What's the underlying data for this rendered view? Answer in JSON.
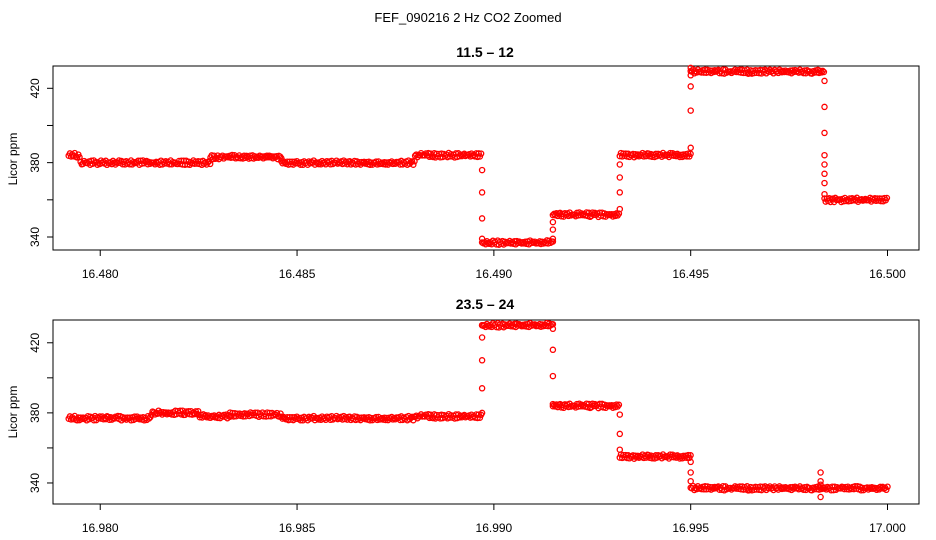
{
  "page_title": "FEF_090216  2 Hz CO2 Zoomed",
  "chart_data": [
    {
      "type": "scatter",
      "title": "11.5 – 12",
      "xlabel": "",
      "ylabel": "Licor ppm",
      "xlim": [
        16.4788,
        16.5008
      ],
      "ylim": [
        333,
        432
      ],
      "x_ticks": [
        "16.480",
        "16.485",
        "16.490",
        "16.495",
        "16.500"
      ],
      "y_ticks": [
        "340",
        "380",
        "420"
      ],
      "grid": false,
      "marker": "open-circle",
      "color": "#ff0000",
      "segments": [
        {
          "x0": 16.4792,
          "x1": 16.4795,
          "y": 384
        },
        {
          "x0": 16.4795,
          "x1": 16.4828,
          "y": 380
        },
        {
          "x0": 16.4828,
          "x1": 16.4846,
          "y": 383
        },
        {
          "x0": 16.4846,
          "x1": 16.488,
          "y": 380
        },
        {
          "x0": 16.488,
          "x1": 16.4897,
          "y": 384
        },
        {
          "x0": 16.4897,
          "x1": 16.4915,
          "y": 337
        },
        {
          "x0": 16.4915,
          "x1": 16.4932,
          "y": 352
        },
        {
          "x0": 16.4932,
          "x1": 16.495,
          "y": 384
        },
        {
          "x0": 16.495,
          "x1": 16.4984,
          "y": 429
        },
        {
          "x0": 16.4984,
          "x1": 16.5,
          "y": 360
        }
      ],
      "transitions": [
        {
          "x": 16.4897,
          "y": [
            376,
            364,
            350,
            339
          ]
        },
        {
          "x": 16.4915,
          "y": [
            348,
            344,
            339
          ]
        },
        {
          "x": 16.4932,
          "y": [
            379,
            372,
            364,
            355
          ]
        },
        {
          "x": 16.495,
          "y": [
            388,
            408,
            421,
            427,
            431
          ]
        },
        {
          "x": 16.4984,
          "y": [
            424,
            410,
            396,
            384,
            379,
            374,
            369,
            363
          ]
        }
      ]
    },
    {
      "type": "scatter",
      "title": "23.5 – 24",
      "xlabel": "",
      "ylabel": "Licor ppm",
      "xlim": [
        16.9788,
        17.0008
      ],
      "ylim": [
        328,
        433
      ],
      "x_ticks": [
        "16.980",
        "16.985",
        "16.990",
        "16.995",
        "17.000"
      ],
      "y_ticks": [
        "340",
        "380",
        "420"
      ],
      "grid": false,
      "marker": "open-circle",
      "color": "#ff0000",
      "segments": [
        {
          "x0": 16.9792,
          "x1": 16.9813,
          "y": 377
        },
        {
          "x0": 16.9813,
          "x1": 16.9825,
          "y": 380
        },
        {
          "x0": 16.9825,
          "x1": 16.9833,
          "y": 378
        },
        {
          "x0": 16.9833,
          "x1": 16.9846,
          "y": 379
        },
        {
          "x0": 16.9846,
          "x1": 16.988,
          "y": 377
        },
        {
          "x0": 16.988,
          "x1": 16.9897,
          "y": 378
        },
        {
          "x0": 16.9897,
          "x1": 16.9915,
          "y": 430
        },
        {
          "x0": 16.9915,
          "x1": 16.9932,
          "y": 384
        },
        {
          "x0": 16.9932,
          "x1": 16.995,
          "y": 355
        },
        {
          "x0": 16.995,
          "x1": 17.0,
          "y": 337
        }
      ],
      "transitions": [
        {
          "x": 16.9897,
          "y": [
            380,
            394,
            410,
            423,
            430
          ]
        },
        {
          "x": 16.9915,
          "y": [
            385,
            401,
            416,
            428
          ]
        },
        {
          "x": 16.9932,
          "y": [
            379,
            368,
            359
          ]
        },
        {
          "x": 16.995,
          "y": [
            352,
            346,
            341
          ]
        },
        {
          "x": 16.9983,
          "y": [
            346,
            341,
            339,
            332
          ]
        }
      ]
    }
  ]
}
